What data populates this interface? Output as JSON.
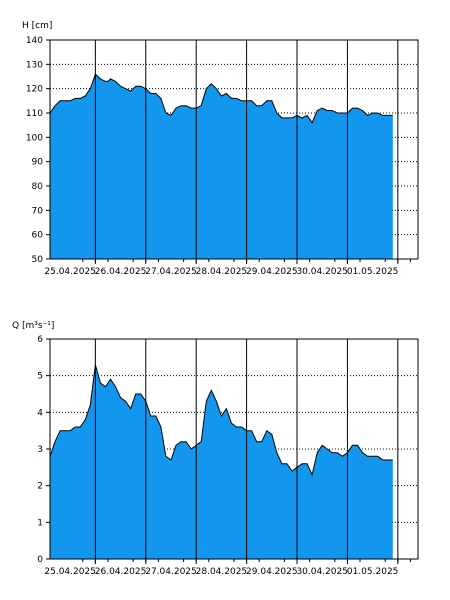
{
  "chart_data": [
    {
      "type": "area",
      "ylabel": "H [cm]",
      "ylim": [
        50,
        140
      ],
      "yticks": [
        "50",
        "60",
        "70",
        "80",
        "90",
        "100",
        "110",
        "120",
        "130",
        "140"
      ],
      "xlim": [
        -0.4,
        6.9
      ],
      "xticks": [
        "25.04.2025",
        "26.04.2025",
        "27.04.2025",
        "28.04.2025",
        "29.04.2025",
        "30.04.2025",
        "01.05.2025"
      ],
      "grid": "horizontal dotted, vertical solid at day boundaries",
      "fill_color": "#1296ee",
      "line_color": "#000000",
      "x": [
        -0.4,
        -0.3,
        -0.2,
        -0.1,
        0.0,
        0.1,
        0.2,
        0.3,
        0.4,
        0.5,
        0.6,
        0.7,
        0.75,
        0.8,
        0.9,
        1.0,
        1.1,
        1.2,
        1.3,
        1.4,
        1.5,
        1.6,
        1.7,
        1.8,
        1.9,
        2.0,
        2.1,
        2.2,
        2.3,
        2.4,
        2.5,
        2.6,
        2.7,
        2.8,
        2.9,
        3.0,
        3.1,
        3.2,
        3.3,
        3.4,
        3.5,
        3.6,
        3.7,
        3.8,
        3.9,
        4.0,
        4.1,
        4.2,
        4.3,
        4.4,
        4.5,
        4.6,
        4.7,
        4.8,
        4.9,
        5.0,
        5.1,
        5.2,
        5.3,
        5.4,
        5.5,
        5.6,
        5.7,
        5.8,
        5.9,
        6.0,
        6.1,
        6.2,
        6.3,
        6.4
      ],
      "values": [
        110,
        113,
        115,
        115,
        115,
        116,
        116,
        117,
        120,
        126,
        124,
        123,
        123,
        124,
        123,
        121,
        120,
        119,
        121,
        121,
        120,
        118,
        118,
        116,
        110,
        109,
        112,
        113,
        113,
        112,
        112,
        113,
        120,
        122,
        120,
        117,
        118,
        116,
        116,
        115,
        115,
        115,
        113,
        113,
        115,
        115,
        110,
        108,
        108,
        108,
        109,
        108,
        109,
        106,
        111,
        112,
        111,
        111,
        110,
        110,
        110,
        112,
        112,
        111,
        109,
        110,
        110,
        109,
        109,
        109
      ]
    },
    {
      "type": "area",
      "ylabel": "Q [m³s⁻¹]",
      "ylim": [
        0,
        6
      ],
      "yticks": [
        "0",
        "1",
        "2",
        "3",
        "4",
        "5",
        "6"
      ],
      "xlim": [
        -0.4,
        6.9
      ],
      "xticks": [
        "25.04.2025",
        "26.04.2025",
        "27.04.2025",
        "28.04.2025",
        "29.04.2025",
        "30.04.2025",
        "01.05.2025"
      ],
      "grid": "horizontal dotted, vertical solid at day boundaries",
      "fill_color": "#1296ee",
      "line_color": "#000000",
      "x": [
        -0.4,
        -0.3,
        -0.2,
        -0.1,
        0.0,
        0.1,
        0.2,
        0.3,
        0.4,
        0.5,
        0.6,
        0.7,
        0.75,
        0.8,
        0.9,
        1.0,
        1.1,
        1.2,
        1.3,
        1.4,
        1.5,
        1.6,
        1.7,
        1.8,
        1.9,
        2.0,
        2.1,
        2.2,
        2.3,
        2.4,
        2.5,
        2.6,
        2.7,
        2.8,
        2.9,
        3.0,
        3.1,
        3.2,
        3.3,
        3.4,
        3.5,
        3.6,
        3.7,
        3.8,
        3.9,
        4.0,
        4.1,
        4.2,
        4.3,
        4.4,
        4.5,
        4.6,
        4.7,
        4.8,
        4.9,
        5.0,
        5.1,
        5.2,
        5.3,
        5.4,
        5.5,
        5.6,
        5.7,
        5.8,
        5.9,
        6.0,
        6.1,
        6.2,
        6.3,
        6.4
      ],
      "values": [
        2.8,
        3.2,
        3.5,
        3.5,
        3.5,
        3.6,
        3.6,
        3.8,
        4.2,
        5.3,
        4.8,
        4.7,
        4.8,
        4.9,
        4.7,
        4.4,
        4.3,
        4.1,
        4.5,
        4.5,
        4.3,
        3.9,
        3.9,
        3.6,
        2.8,
        2.7,
        3.1,
        3.2,
        3.2,
        3.0,
        3.1,
        3.2,
        4.3,
        4.6,
        4.3,
        3.9,
        4.1,
        3.7,
        3.6,
        3.6,
        3.5,
        3.5,
        3.2,
        3.2,
        3.5,
        3.4,
        2.9,
        2.6,
        2.6,
        2.4,
        2.5,
        2.6,
        2.6,
        2.3,
        2.9,
        3.1,
        3.0,
        2.9,
        2.9,
        2.8,
        2.9,
        3.1,
        3.1,
        2.9,
        2.8,
        2.8,
        2.8,
        2.7,
        2.7,
        2.7
      ]
    }
  ]
}
